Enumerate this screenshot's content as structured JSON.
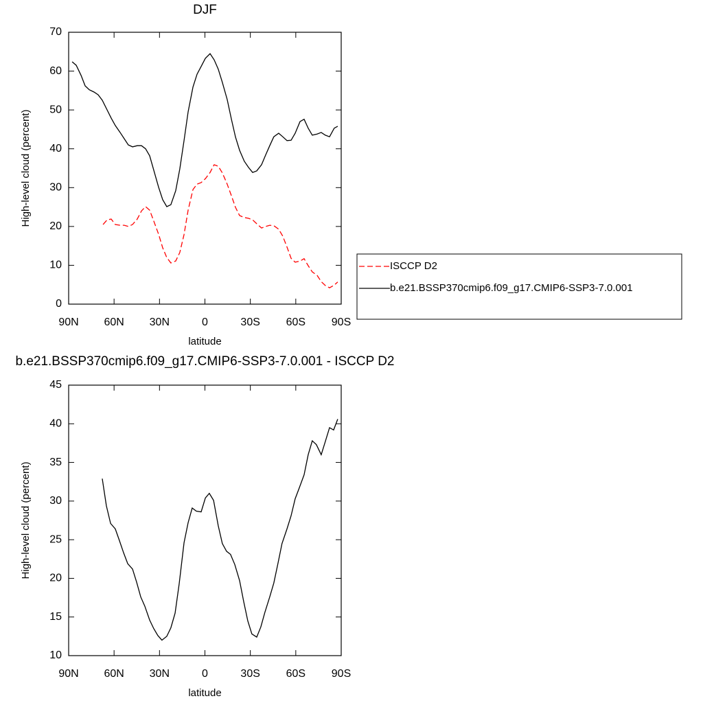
{
  "chart_data": [
    {
      "type": "line",
      "title": "DJF",
      "xlabel": "latitude",
      "ylabel": "High-level cloud (percent)",
      "xlim": [
        90,
        -90
      ],
      "xticks": [
        {
          "value": 90,
          "label": "90N"
        },
        {
          "value": 60,
          "label": "60N"
        },
        {
          "value": 30,
          "label": "30N"
        },
        0,
        {
          "value": -30,
          "label": "30S"
        },
        {
          "value": -60,
          "label": "60S"
        },
        {
          "value": -90,
          "label": "90S"
        }
      ],
      "ylim": [
        0,
        70
      ],
      "yticks": [
        0,
        10,
        20,
        30,
        40,
        50,
        60,
        70
      ],
      "legend": "right",
      "series": [
        {
          "name": "ISCCP D2",
          "color": "#ff0000",
          "line_style": "dashed",
          "x": [
            67.3,
            64.6,
            61.9,
            59.2,
            56.0,
            53.3,
            50.6,
            47.8,
            44.7,
            41.9,
            39.2,
            36.5,
            33.8,
            30.6,
            27.9,
            25.2,
            22.5,
            19.3,
            16.6,
            13.8,
            11.1,
            7.9,
            5.2,
            2.5,
            -0.3,
            -3.4,
            -6.1,
            -8.8,
            -11.5,
            -14.7,
            -17.5,
            -20.2,
            -22.9,
            -26.0,
            -28.8,
            -31.5,
            -34.2,
            -37.4,
            -40.1,
            -42.8,
            -45.5,
            -48.7,
            -51.4,
            -54.2,
            -56.9,
            -59.6,
            -62.8,
            -65.5,
            -68.2,
            -70.9,
            -74.1,
            -76.8,
            -79.5,
            -82.3,
            -85.4,
            -87.7
          ],
          "values": [
            20.5,
            21.7,
            21.9,
            20.5,
            20.3,
            20.3,
            20.0,
            20.5,
            21.9,
            24.0,
            25.1,
            24.2,
            21.4,
            18.0,
            14.5,
            12.0,
            10.6,
            11.1,
            13.3,
            17.9,
            24.2,
            29.5,
            30.9,
            31.3,
            32.3,
            33.9,
            35.9,
            35.5,
            33.8,
            30.9,
            27.9,
            24.9,
            22.8,
            22.3,
            22.1,
            21.7,
            20.7,
            19.6,
            20.0,
            20.3,
            20.2,
            19.3,
            17.5,
            14.7,
            11.8,
            10.8,
            11.1,
            11.7,
            9.9,
            8.3,
            7.4,
            5.8,
            4.8,
            4.2,
            4.9,
            5.7
          ]
        },
        {
          "name": "b.e21.BSSP370cmip6.f09_g17.CMIP6-SSP3-7.0.001",
          "color": "#000000",
          "line_style": "solid",
          "x": [
            87.7,
            85.0,
            81.8,
            79.1,
            76.4,
            73.2,
            70.5,
            67.8,
            64.6,
            61.9,
            59.2,
            56.0,
            53.3,
            50.6,
            47.8,
            44.7,
            41.9,
            39.2,
            36.5,
            33.8,
            30.6,
            27.9,
            25.2,
            22.5,
            19.3,
            16.6,
            13.8,
            11.1,
            7.9,
            5.2,
            2.5,
            -0.3,
            -3.4,
            -6.1,
            -8.8,
            -11.5,
            -14.7,
            -17.5,
            -20.2,
            -22.9,
            -26.0,
            -28.8,
            -31.5,
            -34.2,
            -37.4,
            -40.1,
            -42.8,
            -45.5,
            -48.7,
            -51.4,
            -54.2,
            -56.9,
            -59.6,
            -62.8,
            -65.5,
            -68.2,
            -70.9,
            -74.1,
            -76.8,
            -79.5,
            -82.3,
            -85.4,
            -87.7
          ],
          "values": [
            62.4,
            61.5,
            58.9,
            56.2,
            55.2,
            54.6,
            53.9,
            52.5,
            50.0,
            47.9,
            46.0,
            44.2,
            42.6,
            41.0,
            40.5,
            40.8,
            40.8,
            40.0,
            38.2,
            34.5,
            30.1,
            26.9,
            25.1,
            25.6,
            29.2,
            34.8,
            42.1,
            49.5,
            55.9,
            59.2,
            61.2,
            63.3,
            64.5,
            62.9,
            60.5,
            57.1,
            52.7,
            47.6,
            43.0,
            39.6,
            36.8,
            35.2,
            33.9,
            34.3,
            35.9,
            38.4,
            40.8,
            43.1,
            44.0,
            43.1,
            42.1,
            42.2,
            44.0,
            47.0,
            47.6,
            45.3,
            43.5,
            43.8,
            44.2,
            43.5,
            43.1,
            45.3,
            45.8
          ]
        }
      ]
    },
    {
      "type": "line",
      "title": "b.e21.BSSP370cmip6.f09_g17.CMIP6-SSP3-7.0.001 - ISCCP D2",
      "xlabel": "latitude",
      "ylabel": "High-level cloud (percent)",
      "xlim": [
        90,
        -90
      ],
      "xticks": [
        {
          "value": 90,
          "label": "90N"
        },
        {
          "value": 60,
          "label": "60N"
        },
        {
          "value": 30,
          "label": "30N"
        },
        0,
        {
          "value": -30,
          "label": "30S"
        },
        {
          "value": -60,
          "label": "60S"
        },
        {
          "value": -90,
          "label": "90S"
        }
      ],
      "ylim": [
        10,
        45
      ],
      "yticks": [
        10,
        15,
        20,
        25,
        30,
        35,
        40,
        45
      ],
      "series": [
        {
          "color": "#000000",
          "line_style": "solid",
          "x": [
            67.8,
            65.1,
            62.3,
            59.2,
            56.5,
            53.7,
            51.0,
            47.8,
            45.1,
            42.4,
            39.7,
            36.5,
            33.8,
            31.1,
            28.4,
            25.2,
            22.5,
            19.7,
            17.0,
            13.8,
            11.1,
            8.4,
            5.7,
            2.5,
            -0.3,
            -2.9,
            -5.7,
            -8.8,
            -11.5,
            -14.3,
            -16.9,
            -19.7,
            -22.9,
            -25.6,
            -28.3,
            -31.0,
            -34.2,
            -36.9,
            -39.6,
            -42.8,
            -45.5,
            -48.2,
            -50.9,
            -54.2,
            -56.9,
            -59.6,
            -62.3,
            -65.5,
            -68.2,
            -70.9,
            -73.6,
            -76.8,
            -79.5,
            -82.3,
            -85.0,
            -87.7
          ],
          "values": [
            32.9,
            29.4,
            27.1,
            26.4,
            24.9,
            23.3,
            21.9,
            21.2,
            19.5,
            17.6,
            16.4,
            14.6,
            13.5,
            12.6,
            12.0,
            12.5,
            13.6,
            15.5,
            19.3,
            24.6,
            27.2,
            29.1,
            28.7,
            28.6,
            30.4,
            31.0,
            30.1,
            26.8,
            24.5,
            23.5,
            23.1,
            21.8,
            19.7,
            17.0,
            14.5,
            12.8,
            12.4,
            13.7,
            15.6,
            17.6,
            19.4,
            21.9,
            24.5,
            26.4,
            28.1,
            30.3,
            31.7,
            33.4,
            36.0,
            37.8,
            37.3,
            36.0,
            37.7,
            39.5,
            39.2,
            40.6
          ]
        }
      ]
    }
  ]
}
